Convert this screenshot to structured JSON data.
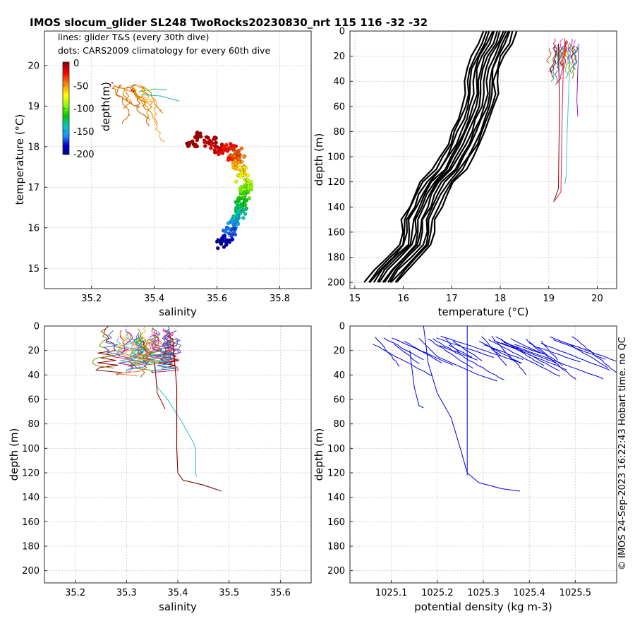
{
  "figure": {
    "title": "IMOS slocum_glider SL248 TwoRocks20230830_nrt 115  116  -32  -32",
    "side_text": "© IMOS 24-Sep-2023 16:22:43 Hobart time. no QC",
    "annotation_lines": "lines: glider T&S (every 30th dive)",
    "annotation_dots": "dots: CARS2009 climatology for every 60th dive"
  },
  "colorbar": {
    "label": "depth(m)",
    "ticks": [
      "0",
      "-50",
      "-100",
      "-150",
      "-200"
    ],
    "colors": [
      "#8b0000",
      "#ff0000",
      "#ff8c00",
      "#ffff00",
      "#7fff00",
      "#00c800",
      "#00c8c8",
      "#1e90ff",
      "#0000cd",
      "#00008b"
    ]
  },
  "colors": {
    "profile_black": "#000000",
    "density_blue": "#0000e6",
    "grid": "#c8c8c8"
  },
  "chart_data": [
    {
      "type": "scatter",
      "panel": "ts",
      "xlabel": "salinity",
      "ylabel": "temperature (°C)",
      "xlim": [
        35.05,
        35.9
      ],
      "ylim": [
        14.5,
        20.85
      ],
      "xticks": [
        "35.2",
        "35.4",
        "35.6",
        "35.8"
      ],
      "yticks": [
        "15",
        "16",
        "17",
        "18",
        "19",
        "20"
      ],
      "grid": true,
      "climatology_dots": [
        {
          "s": 35.52,
          "t": 18.08,
          "d": 5
        },
        {
          "s": 35.55,
          "t": 18.25,
          "d": 5
        },
        {
          "s": 35.58,
          "t": 18.12,
          "d": 10
        },
        {
          "s": 35.6,
          "t": 17.95,
          "d": 15
        },
        {
          "s": 35.62,
          "t": 17.88,
          "d": 20
        },
        {
          "s": 35.64,
          "t": 17.98,
          "d": 25
        },
        {
          "s": 35.65,
          "t": 17.75,
          "d": 30
        },
        {
          "s": 35.66,
          "t": 17.85,
          "d": 35
        },
        {
          "s": 35.67,
          "t": 17.7,
          "d": 40
        },
        {
          "s": 35.67,
          "t": 17.55,
          "d": 50
        },
        {
          "s": 35.68,
          "t": 17.4,
          "d": 60
        },
        {
          "s": 35.68,
          "t": 17.25,
          "d": 70
        },
        {
          "s": 35.69,
          "t": 17.1,
          "d": 80
        },
        {
          "s": 35.69,
          "t": 16.95,
          "d": 90
        },
        {
          "s": 35.69,
          "t": 16.8,
          "d": 100
        },
        {
          "s": 35.68,
          "t": 16.65,
          "d": 110
        },
        {
          "s": 35.68,
          "t": 16.5,
          "d": 120
        },
        {
          "s": 35.67,
          "t": 16.35,
          "d": 130
        },
        {
          "s": 35.66,
          "t": 16.2,
          "d": 140
        },
        {
          "s": 35.65,
          "t": 16.05,
          "d": 150
        },
        {
          "s": 35.64,
          "t": 15.9,
          "d": 165
        },
        {
          "s": 35.63,
          "t": 15.75,
          "d": 180
        },
        {
          "s": 35.62,
          "t": 15.6,
          "d": 195
        }
      ]
    },
    {
      "type": "line",
      "panel": "temperature_profile",
      "xlabel": "temperature (°C)",
      "ylabel": "depth (m)",
      "xlim": [
        14.9,
        20.4
      ],
      "ylim": [
        205,
        0
      ],
      "xticks": [
        "15",
        "16",
        "17",
        "18",
        "19",
        "20"
      ],
      "yticks": [
        "0",
        "20",
        "40",
        "60",
        "80",
        "100",
        "120",
        "140",
        "160",
        "180",
        "200"
      ],
      "grid": true
    },
    {
      "type": "line",
      "panel": "salinity_profile",
      "xlabel": "salinity",
      "ylabel": "depth (m)",
      "xlim": [
        35.14,
        35.66
      ],
      "ylim": [
        210,
        0
      ],
      "xticks": [
        "35.2",
        "35.3",
        "35.4",
        "35.5",
        "35.6"
      ],
      "yticks": [
        "0",
        "20",
        "40",
        "60",
        "80",
        "100",
        "120",
        "140",
        "160",
        "180",
        "200"
      ],
      "grid": true
    },
    {
      "type": "line",
      "panel": "density_profile",
      "xlabel": "potential density (kg m-3)",
      "ylabel": "depth (m)",
      "xlim": [
        1025.01,
        1025.59
      ],
      "ylim": [
        210,
        0
      ],
      "xticks": [
        "1025.1",
        "1025.2",
        "1025.3",
        "1025.4",
        "1025.5"
      ],
      "yticks": [
        "0",
        "20",
        "40",
        "60",
        "80",
        "100",
        "120",
        "140",
        "160",
        "180",
        "200"
      ],
      "grid": true
    }
  ]
}
